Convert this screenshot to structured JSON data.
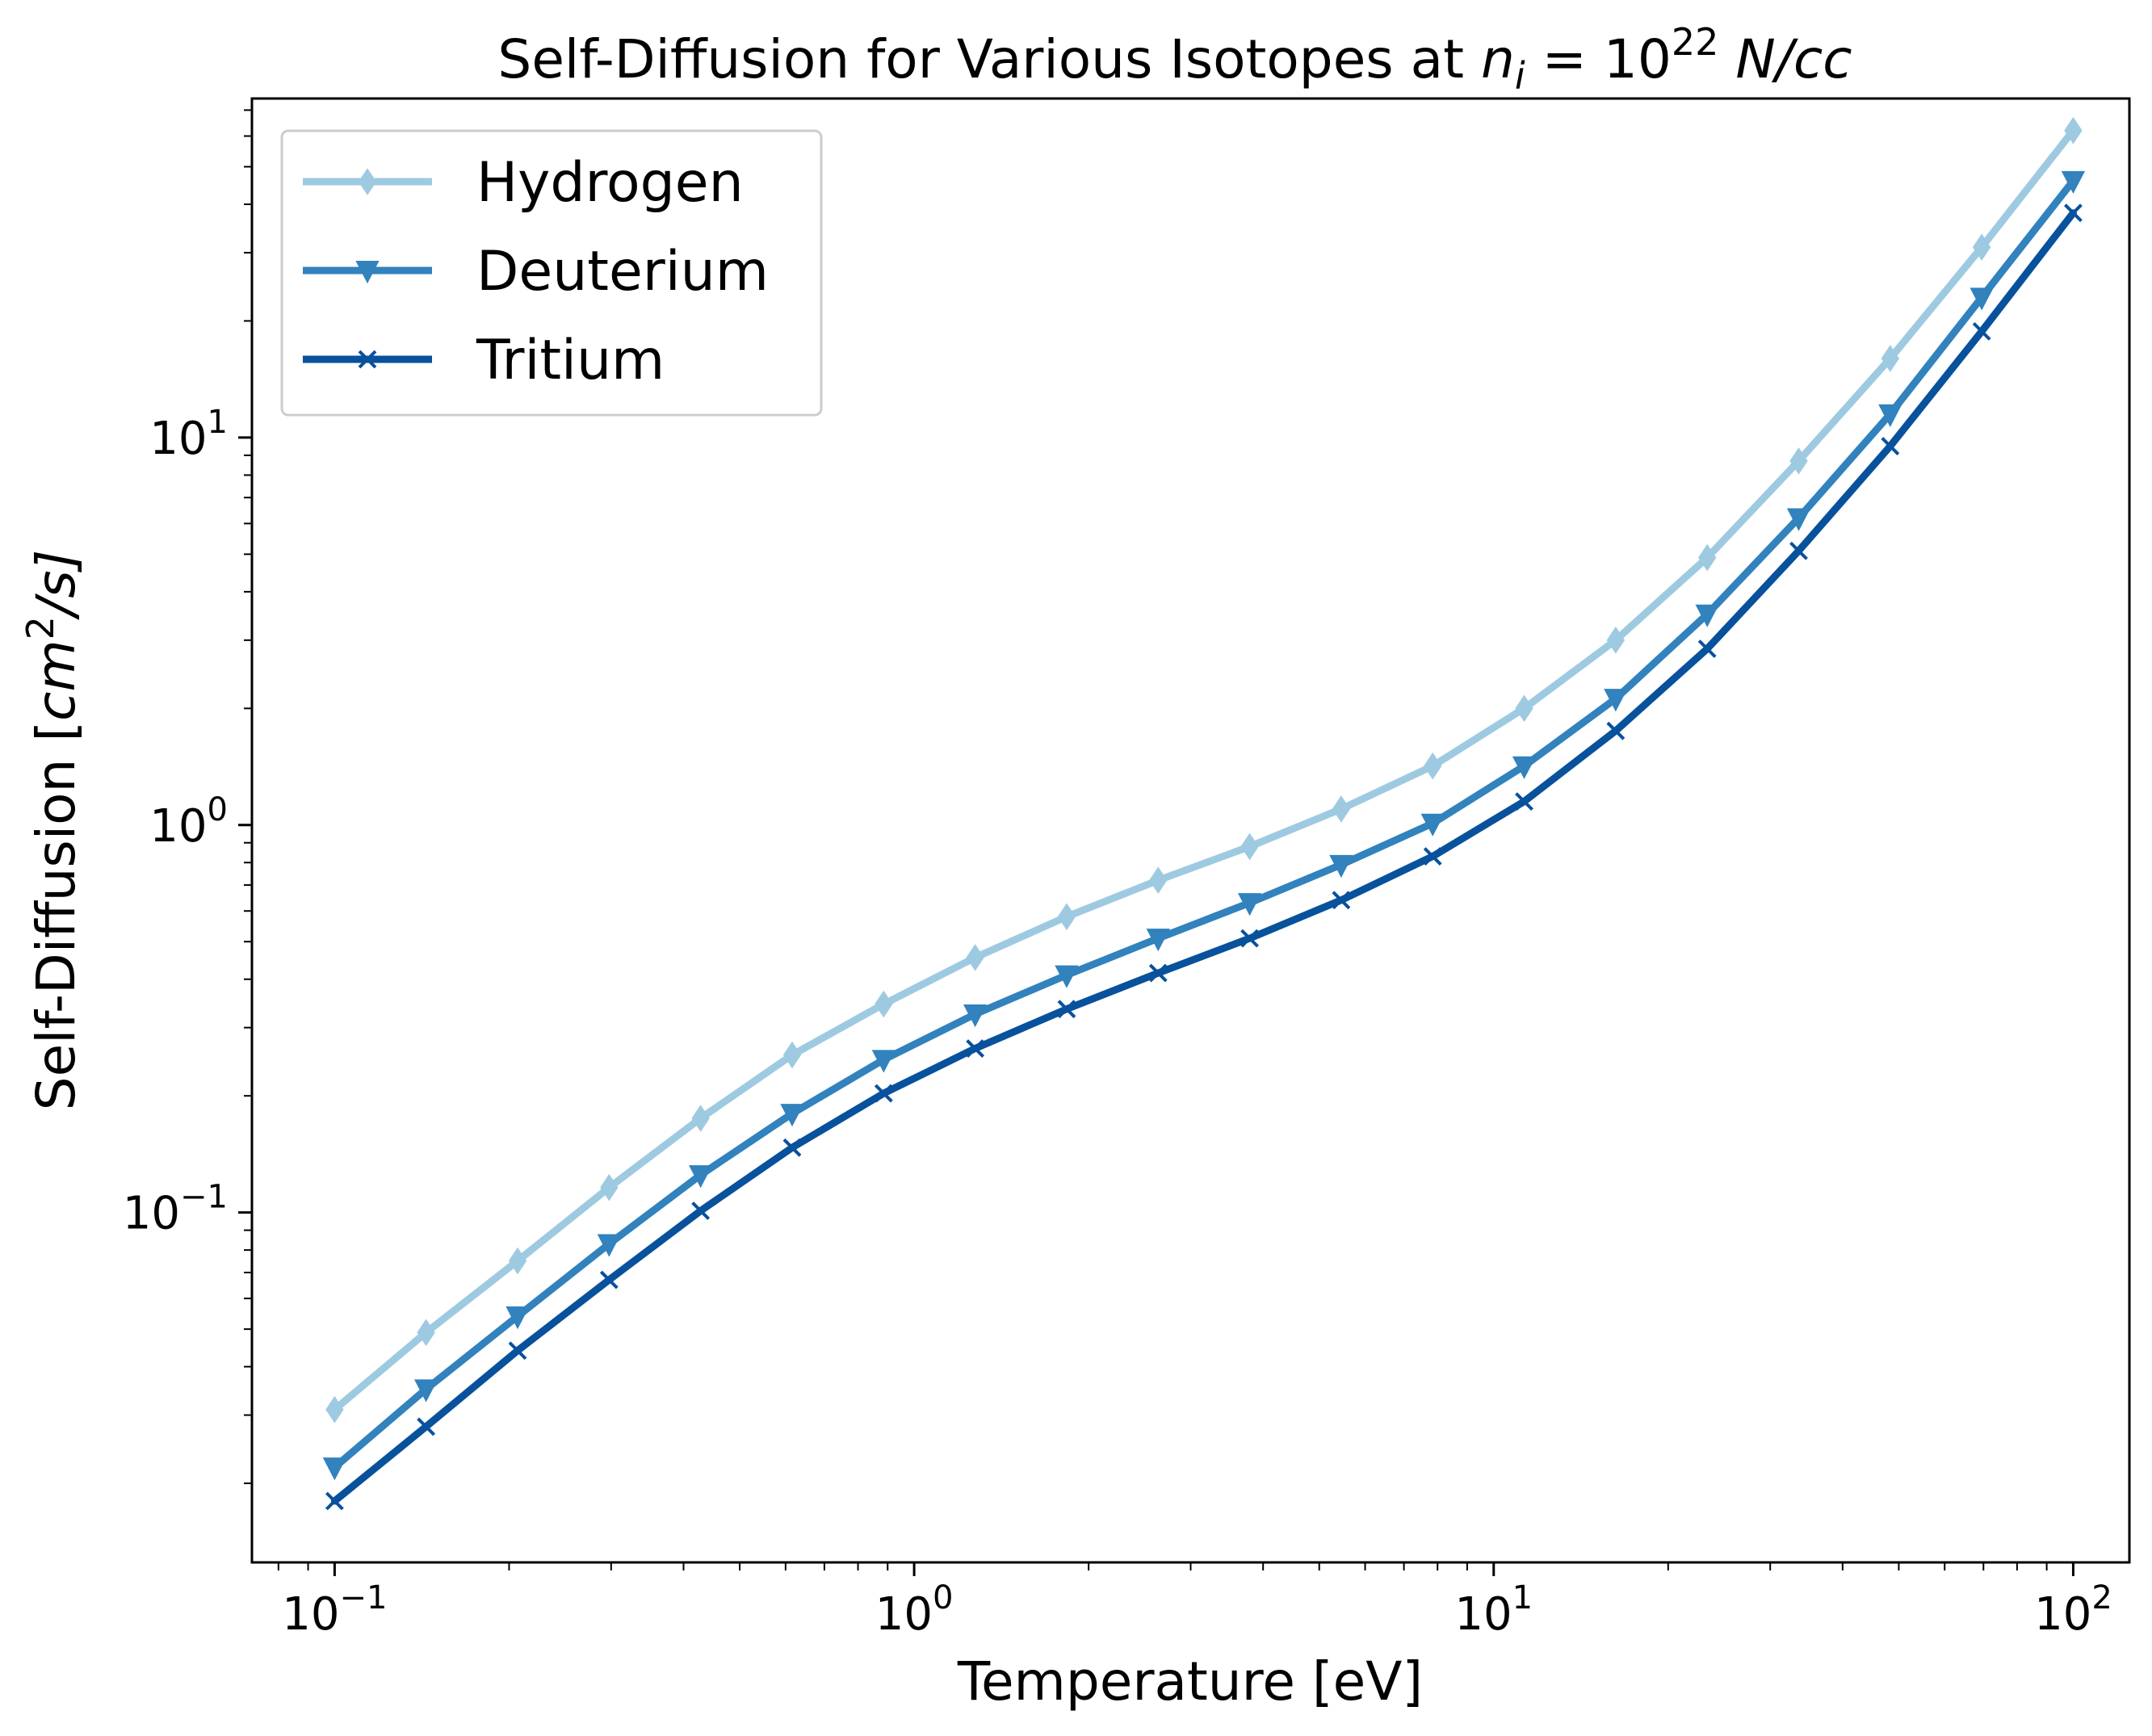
{
  "chart_data": {
    "type": "line",
    "title": {
      "prefix": "Self-Diffusion for Various Isotopes at ",
      "var": "n",
      "var_sub": "i",
      "eq": " = 10",
      "exp": "22",
      "unit": " N/cc"
    },
    "xlabel": "Temperature [eV]",
    "ylabel": {
      "prefix": "Self-Diffusion [",
      "unit": "cm",
      "exp": "2",
      "suffix": "/s]"
    },
    "x_scale": "log",
    "y_scale": "log",
    "xlim": [
      0.072,
      125
    ],
    "ylim": [
      0.0125,
      75
    ],
    "grid": false,
    "legend_position": "top-left",
    "x_ticks": [
      {
        "value": 0.1,
        "base": "10",
        "exp": "−1"
      },
      {
        "value": 1,
        "base": "10",
        "exp": "0"
      },
      {
        "value": 10,
        "base": "10",
        "exp": "1"
      },
      {
        "value": 100,
        "base": "10",
        "exp": "2"
      }
    ],
    "y_ticks": [
      {
        "value": 0.1,
        "base": "10",
        "exp": "−1"
      },
      {
        "value": 1,
        "base": "10",
        "exp": "0"
      },
      {
        "value": 10,
        "base": "10",
        "exp": "1"
      }
    ],
    "x": [
      0.1,
      0.1438,
      0.2069,
      0.2976,
      0.4281,
      0.6158,
      0.8859,
      1.2743,
      1.833,
      2.6367,
      3.7927,
      5.4556,
      7.8476,
      11.2884,
      16.2378,
      23.3572,
      33.5982,
      48.3293,
      69.5193,
      100
    ],
    "series": [
      {
        "name": "Hydrogen",
        "color": "#9ecae1",
        "marker": "thin_diamond",
        "values": [
          0.031,
          0.049,
          0.075,
          0.116,
          0.175,
          0.255,
          0.345,
          0.455,
          0.58,
          0.72,
          0.88,
          1.1,
          1.42,
          2.0,
          3.0,
          4.9,
          8.7,
          16.0,
          31.0,
          62.0
        ]
      },
      {
        "name": "Deuterium",
        "color": "#3182bd",
        "marker": "triangle_down",
        "values": [
          0.022,
          0.035,
          0.054,
          0.083,
          0.125,
          0.18,
          0.248,
          0.325,
          0.41,
          0.51,
          0.63,
          0.79,
          1.01,
          1.42,
          2.12,
          3.5,
          6.2,
          11.5,
          23.0,
          46.0
        ]
      },
      {
        "name": "Tritium",
        "color": "#08519c",
        "marker": "x",
        "values": [
          0.018,
          0.028,
          0.044,
          0.067,
          0.101,
          0.147,
          0.203,
          0.265,
          0.335,
          0.415,
          0.51,
          0.64,
          0.83,
          1.15,
          1.75,
          2.85,
          5.1,
          9.5,
          18.8,
          38.0
        ]
      }
    ]
  }
}
